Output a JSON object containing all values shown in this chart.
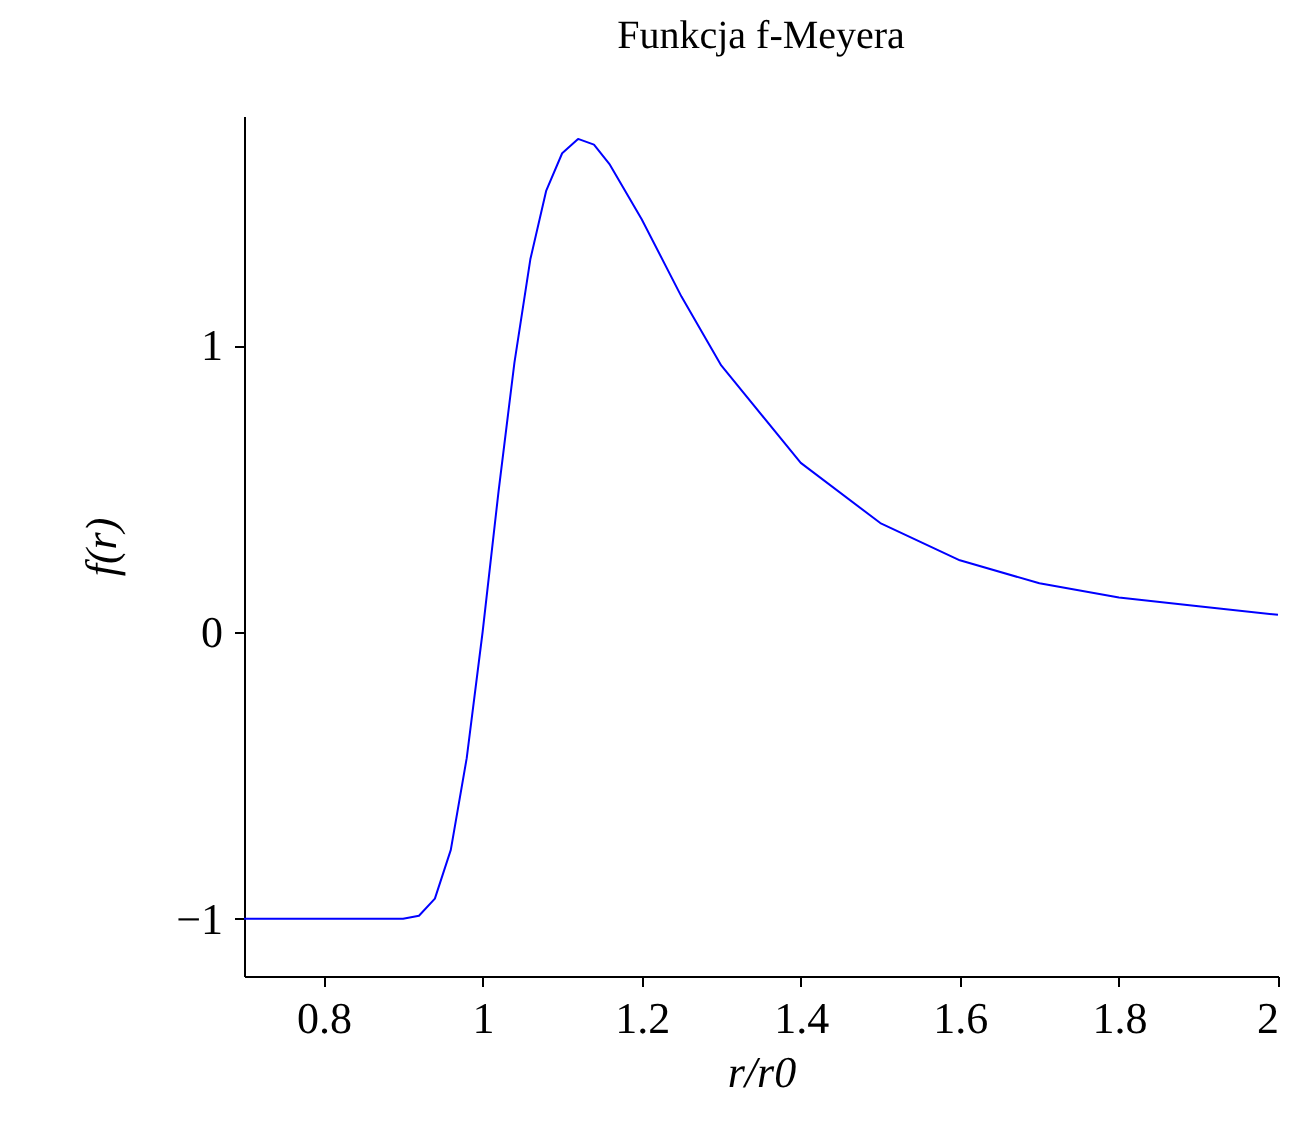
{
  "chart_data": {
    "type": "line",
    "title": "Funkcja f-Meyera",
    "xlabel": "r/r0",
    "ylabel": "f(r)",
    "x": [
      0.7,
      0.8,
      0.9,
      0.92,
      0.94,
      0.96,
      0.98,
      1,
      1.02,
      1.04,
      1.06,
      1.08,
      1.1,
      1.12,
      1.14,
      1.16,
      1.2,
      1.25,
      1.3,
      1.4,
      1.5,
      1.6,
      1.7,
      1.8,
      1.9,
      2
    ],
    "series": [
      {
        "color": "#0000ff",
        "values": [
          -1,
          -1,
          -1,
          -0.99,
          -0.93,
          -0.76,
          -0.44,
          0,
          0.49,
          0.94,
          1.3,
          1.54,
          1.67,
          1.72,
          1.7,
          1.63,
          1.44,
          1.17,
          0.93,
          0.59,
          0.38,
          0.25,
          0.17,
          0.12,
          0.09,
          0.06
        ]
      }
    ],
    "xlim": [
      0.7,
      2
    ],
    "ylim": [
      -1.2,
      1.8
    ],
    "xticks": [
      0.8,
      1,
      1.2,
      1.4,
      1.6,
      1.8,
      2
    ],
    "yticks": [
      {
        "value": -1,
        "label": "−1"
      },
      0,
      1
    ],
    "grid": false,
    "marker": "none",
    "line_style": "solid"
  }
}
